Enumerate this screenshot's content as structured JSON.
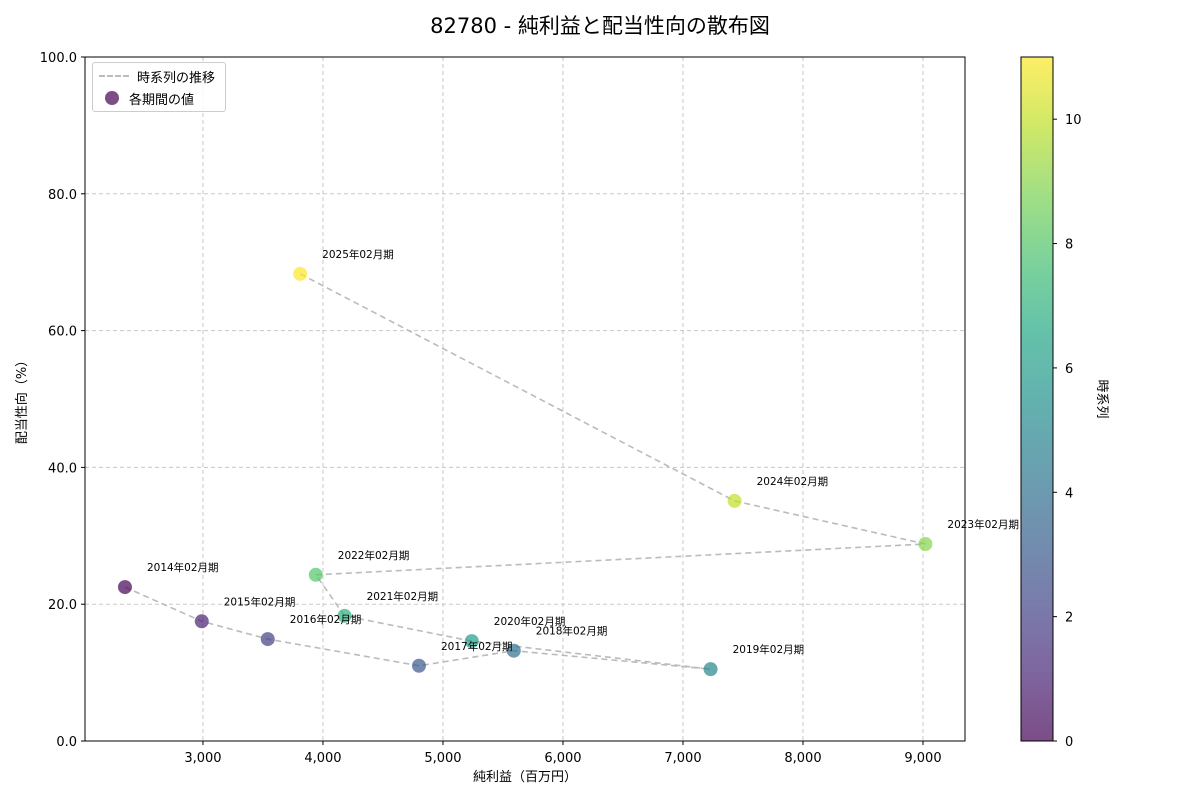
{
  "title": "82780 - 純利益と配当性向の散布図",
  "legend": {
    "line_label": "時系列の推移",
    "marker_label": "各期間の値"
  },
  "colorbar": {
    "label": "時系列",
    "ticks": [
      "0",
      "2",
      "4",
      "6",
      "8",
      "10"
    ],
    "range": [
      0,
      11
    ]
  },
  "chart_data": {
    "type": "scatter",
    "title": "82780 - 純利益と配当性向の散布図",
    "xlabel": "純利益（百万円）",
    "ylabel": "配当性向（%）",
    "xlim": [
      2017,
      9350
    ],
    "ylim": [
      0,
      100
    ],
    "x_ticks": [
      "3,000",
      "4,000",
      "5,000",
      "6,000",
      "7,000",
      "8,000",
      "9,000"
    ],
    "y_ticks": [
      "0.0",
      "20.0",
      "40.0",
      "60.0",
      "80.0",
      "100.0"
    ],
    "grid": true,
    "legend_position": "upper left",
    "colormap": "viridis",
    "connect_line": "dashed gray in time order",
    "points": [
      {
        "label": "2014年02月期",
        "x": 2350,
        "y": 22.5,
        "t": 0
      },
      {
        "label": "2015年02月期",
        "x": 2990,
        "y": 17.5,
        "t": 1
      },
      {
        "label": "2016年02月期",
        "x": 3540,
        "y": 14.9,
        "t": 2
      },
      {
        "label": "2017年02月期",
        "x": 4800,
        "y": 11.0,
        "t": 3
      },
      {
        "label": "2018年02月期",
        "x": 5590,
        "y": 13.2,
        "t": 4
      },
      {
        "label": "2019年02月期",
        "x": 7230,
        "y": 10.5,
        "t": 5
      },
      {
        "label": "2020年02月期",
        "x": 5240,
        "y": 14.6,
        "t": 6
      },
      {
        "label": "2021年02月期",
        "x": 4180,
        "y": 18.3,
        "t": 7
      },
      {
        "label": "2022年02月期",
        "x": 3940,
        "y": 24.3,
        "t": 8
      },
      {
        "label": "2023年02月期",
        "x": 9020,
        "y": 28.8,
        "t": 9
      },
      {
        "label": "2024年02月期",
        "x": 7430,
        "y": 35.1,
        "t": 10
      },
      {
        "label": "2025年02月期",
        "x": 3810,
        "y": 68.3,
        "t": 11
      }
    ]
  }
}
